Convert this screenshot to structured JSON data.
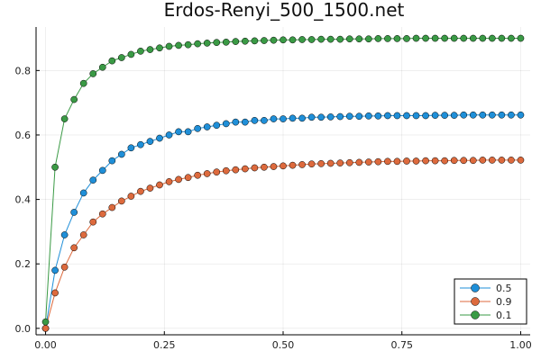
{
  "chart_data": {
    "type": "line",
    "title": "Erdos-Renyi_500_1500.net",
    "xlabel": "",
    "ylabel": "",
    "xlim": [
      0,
      1
    ],
    "ylim": [
      0,
      0.9
    ],
    "grid": true,
    "legend_position": "bottom-right",
    "x_ticks": [
      "0.00",
      "0.25",
      "0.50",
      "0.75",
      "1.00"
    ],
    "y_ticks": [
      "0.0",
      "0.2",
      "0.4",
      "0.6",
      "0.8"
    ],
    "x": [
      0.0,
      0.02,
      0.04,
      0.06,
      0.08,
      0.1,
      0.12,
      0.14,
      0.16,
      0.18,
      0.2,
      0.22,
      0.24,
      0.26,
      0.28,
      0.3,
      0.32,
      0.34,
      0.36,
      0.38,
      0.4,
      0.42,
      0.44,
      0.46,
      0.48,
      0.5,
      0.52,
      0.54,
      0.56,
      0.58,
      0.6,
      0.62,
      0.64,
      0.66,
      0.68,
      0.7,
      0.72,
      0.74,
      0.76,
      0.78,
      0.8,
      0.82,
      0.84,
      0.86,
      0.88,
      0.9,
      0.92,
      0.94,
      0.96,
      0.98,
      1.0
    ],
    "series": [
      {
        "name": "0.5",
        "color": "#1f8fd8",
        "values": [
          0.0,
          0.18,
          0.29,
          0.36,
          0.42,
          0.46,
          0.49,
          0.52,
          0.54,
          0.56,
          0.57,
          0.58,
          0.59,
          0.6,
          0.61,
          0.61,
          0.62,
          0.625,
          0.63,
          0.635,
          0.64,
          0.64,
          0.645,
          0.645,
          0.65,
          0.65,
          0.652,
          0.652,
          0.655,
          0.655,
          0.656,
          0.657,
          0.658,
          0.658,
          0.659,
          0.659,
          0.66,
          0.66,
          0.66,
          0.66,
          0.66,
          0.661,
          0.661,
          0.661,
          0.662,
          0.662,
          0.662,
          0.662,
          0.662,
          0.662,
          0.662
        ]
      },
      {
        "name": "0.9",
        "color": "#dd6a3d",
        "values": [
          0.0,
          0.11,
          0.19,
          0.25,
          0.29,
          0.33,
          0.355,
          0.375,
          0.395,
          0.41,
          0.425,
          0.435,
          0.445,
          0.455,
          0.462,
          0.468,
          0.475,
          0.48,
          0.485,
          0.489,
          0.492,
          0.495,
          0.498,
          0.5,
          0.502,
          0.504,
          0.506,
          0.508,
          0.51,
          0.511,
          0.512,
          0.513,
          0.514,
          0.515,
          0.516,
          0.517,
          0.518,
          0.518,
          0.519,
          0.519,
          0.52,
          0.52,
          0.52,
          0.521,
          0.521,
          0.521,
          0.522,
          0.522,
          0.522,
          0.522,
          0.522
        ]
      },
      {
        "name": "0.1",
        "color": "#3a9a45",
        "values": [
          0.02,
          0.5,
          0.65,
          0.71,
          0.76,
          0.79,
          0.81,
          0.83,
          0.84,
          0.85,
          0.86,
          0.865,
          0.87,
          0.875,
          0.878,
          0.88,
          0.883,
          0.885,
          0.887,
          0.888,
          0.89,
          0.891,
          0.892,
          0.893,
          0.894,
          0.895,
          0.895,
          0.896,
          0.896,
          0.897,
          0.897,
          0.897,
          0.898,
          0.898,
          0.898,
          0.899,
          0.899,
          0.899,
          0.899,
          0.9,
          0.9,
          0.9,
          0.9,
          0.9,
          0.9,
          0.9,
          0.9,
          0.9,
          0.9,
          0.9,
          0.9
        ]
      }
    ]
  }
}
